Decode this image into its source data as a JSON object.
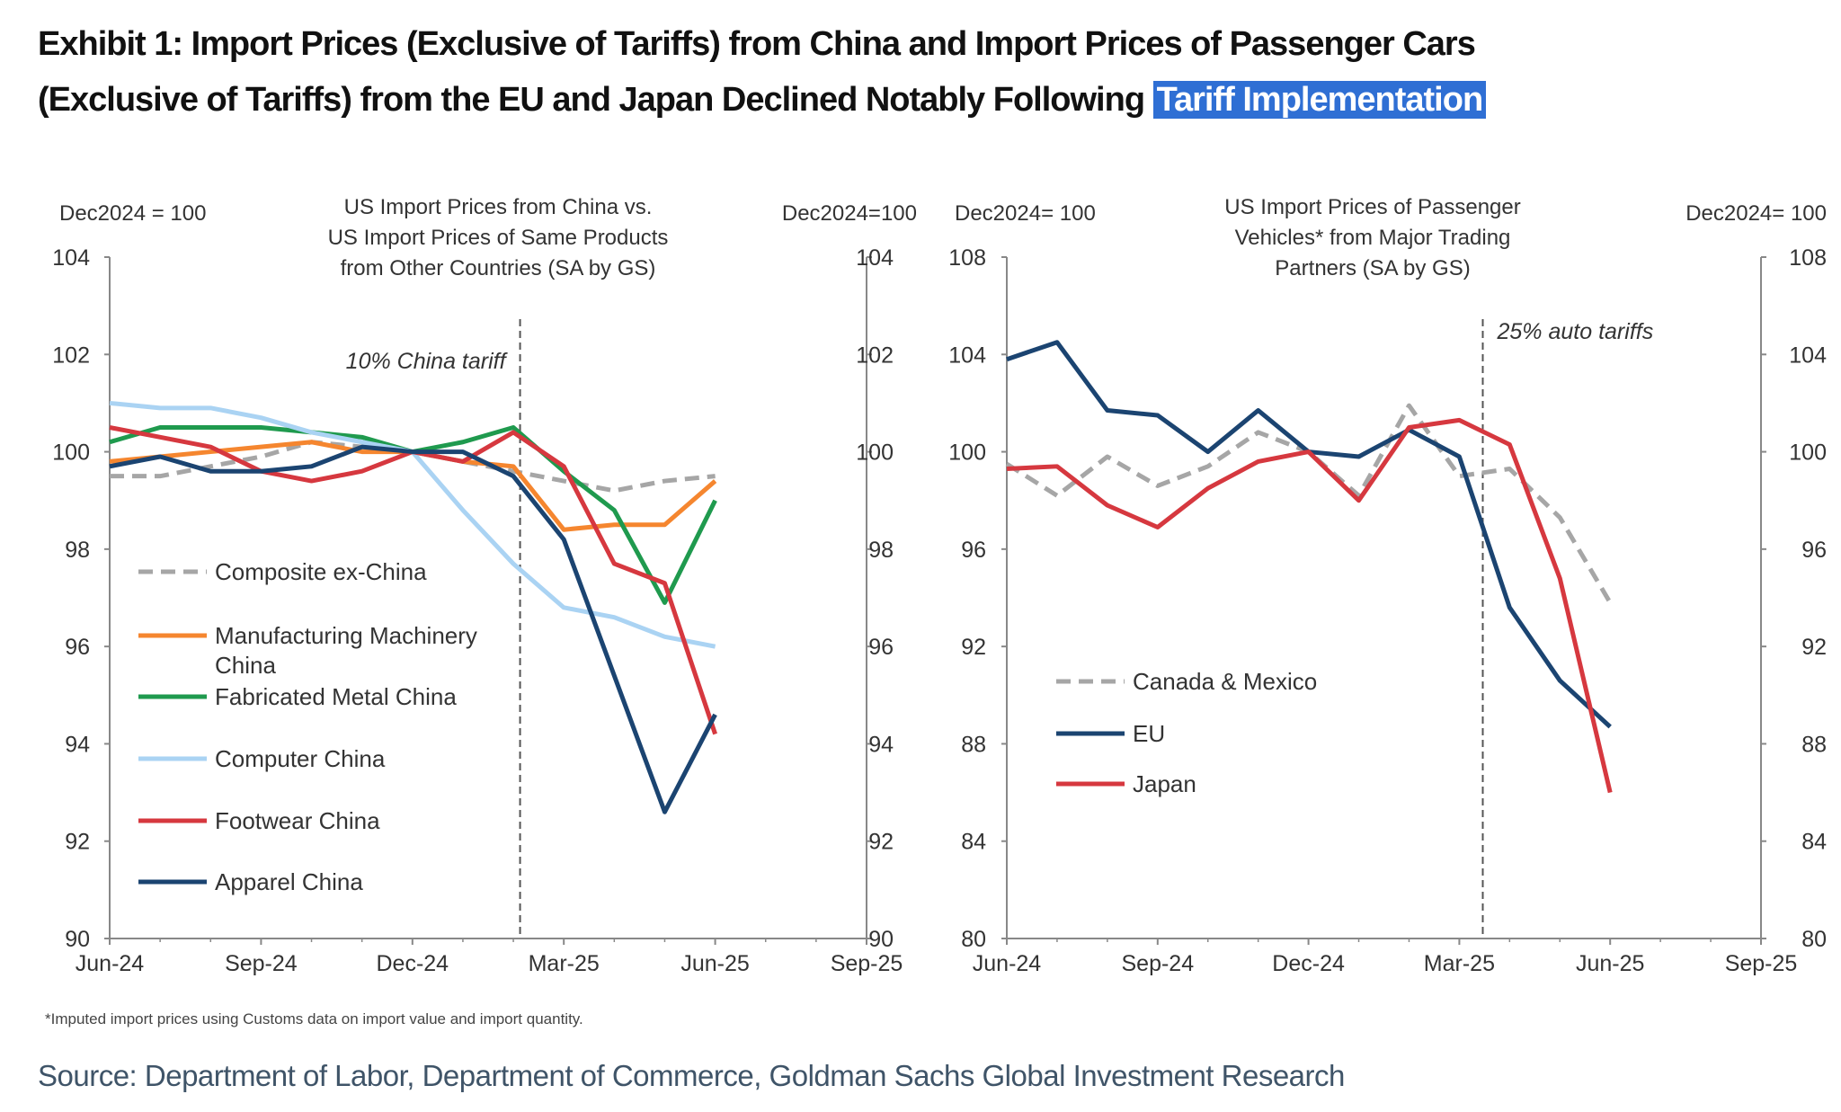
{
  "title": {
    "line1": "Exhibit 1: Import Prices (Exclusive of Tariffs) from China and Import Prices of Passenger Cars",
    "line2_prefix": "(Exclusive of Tariffs) from the EU and Japan Declined Notably Following ",
    "line2_highlight": "Tariff Implementation",
    "highlight_color": "#2f6fd4"
  },
  "footnote": "*Imputed import prices using Customs data on import value and import quantity.",
  "source": "Source: Department of Labor, Department of Commerce, Goldman Sachs Global Investment Research",
  "chart_data": [
    {
      "type": "line",
      "title": [
        "US Import  Prices from  China vs.",
        "US Import  Prices of Same Products",
        "from Other  Countries  (SA by GS)"
      ],
      "ylabel_left": "Dec2024  = 100",
      "ylabel_right": "Dec2024=100",
      "ylim": [
        90,
        104
      ],
      "yticks": [
        "90",
        "92",
        "94",
        "96",
        "98",
        "100",
        "102",
        "104"
      ],
      "xticks": [
        "Jun-24",
        "Sep-24",
        "Dec-24",
        "Mar-25",
        "Jun-25",
        "Sep-25"
      ],
      "xlim": [
        "Jun-24",
        "Sep-25"
      ],
      "x": [
        "Jun-24",
        "Jul-24",
        "Aug-24",
        "Sep-24",
        "Oct-24",
        "Nov-24",
        "Dec-24",
        "Jan-25",
        "Feb-25",
        "Mar-25",
        "Apr-25",
        "May-25",
        "Jun-25"
      ],
      "annotation": {
        "text": "10% China  tariff",
        "month": "Feb-25",
        "day": 4
      },
      "legend_position": "bottom-left",
      "grid": false,
      "series": [
        {
          "name": "Composite ex-China",
          "color": "#a6a6a6",
          "dashed": true,
          "values": [
            99.5,
            99.5,
            99.7,
            99.9,
            100.2,
            100.1,
            100.0,
            99.8,
            99.6,
            99.4,
            99.2,
            99.4,
            99.5
          ]
        },
        {
          "name": "Manufacturing Machinery China",
          "color": "#f5862f",
          "dashed": false,
          "values": [
            99.8,
            99.9,
            100.0,
            100.1,
            100.2,
            100.0,
            100.0,
            99.8,
            99.7,
            98.4,
            98.5,
            98.5,
            99.4
          ]
        },
        {
          "name": "Fabricated Metal China",
          "color": "#1f9a4e",
          "dashed": false,
          "values": [
            100.2,
            100.5,
            100.5,
            100.5,
            100.4,
            100.3,
            100.0,
            100.2,
            100.5,
            99.6,
            98.8,
            96.9,
            99.0
          ]
        },
        {
          "name": "Computer China",
          "color": "#aad3f3",
          "dashed": false,
          "values": [
            101.0,
            100.9,
            100.9,
            100.7,
            100.4,
            100.2,
            100.0,
            98.8,
            97.7,
            96.8,
            96.6,
            96.2,
            96.0
          ]
        },
        {
          "name": "Footwear China",
          "color": "#d6383f",
          "dashed": false,
          "values": [
            100.5,
            100.3,
            100.1,
            99.6,
            99.4,
            99.6,
            100.0,
            99.8,
            100.4,
            99.7,
            97.7,
            97.3,
            94.2
          ]
        },
        {
          "name": "Apparel China",
          "color": "#1b4471",
          "dashed": false,
          "values": [
            99.7,
            99.9,
            99.6,
            99.6,
            99.7,
            100.1,
            100.0,
            100.0,
            99.5,
            98.2,
            95.4,
            92.6,
            94.6
          ]
        }
      ]
    },
    {
      "type": "line",
      "title": [
        "US Import  Prices of Passenger",
        "Vehicles* from  Major Trading",
        "Partners (SA by GS)"
      ],
      "ylabel_left": "Dec2024=  100",
      "ylabel_right": "Dec2024=  100",
      "ylim": [
        80,
        108
      ],
      "yticks": [
        "80",
        "84",
        "88",
        "92",
        "96",
        "100",
        "104",
        "108"
      ],
      "xticks": [
        "Jun-24",
        "Sep-24",
        "Dec-24",
        "Mar-25",
        "Jun-25",
        "Sep-25"
      ],
      "xlim": [
        "Jun-24",
        "Sep-25"
      ],
      "x": [
        "Jun-24",
        "Jul-24",
        "Aug-24",
        "Sep-24",
        "Oct-24",
        "Nov-24",
        "Dec-24",
        "Jan-25",
        "Feb-25",
        "Mar-25",
        "Apr-25",
        "May-25",
        "Jun-25"
      ],
      "annotation": {
        "text": "25% auto tariffs",
        "month": "Mar-25",
        "day": 14
      },
      "legend_position": "bottom-left",
      "grid": false,
      "series": [
        {
          "name": "Canada & Mexico",
          "color": "#a6a6a6",
          "dashed": true,
          "values": [
            99.5,
            98.2,
            99.8,
            98.6,
            99.4,
            100.8,
            100.0,
            98.2,
            101.9,
            99.0,
            99.3,
            97.3,
            93.8
          ]
        },
        {
          "name": "EU",
          "color": "#1b4471",
          "dashed": false,
          "values": [
            103.8,
            104.5,
            101.7,
            101.5,
            100.0,
            101.7,
            100.0,
            99.8,
            100.9,
            99.8,
            93.6,
            90.6,
            88.7
          ]
        },
        {
          "name": "Japan",
          "color": "#d6383f",
          "dashed": false,
          "values": [
            99.3,
            99.4,
            97.8,
            96.9,
            98.5,
            99.6,
            100.0,
            98.0,
            101.0,
            101.3,
            100.3,
            94.8,
            86.0
          ]
        }
      ]
    }
  ]
}
